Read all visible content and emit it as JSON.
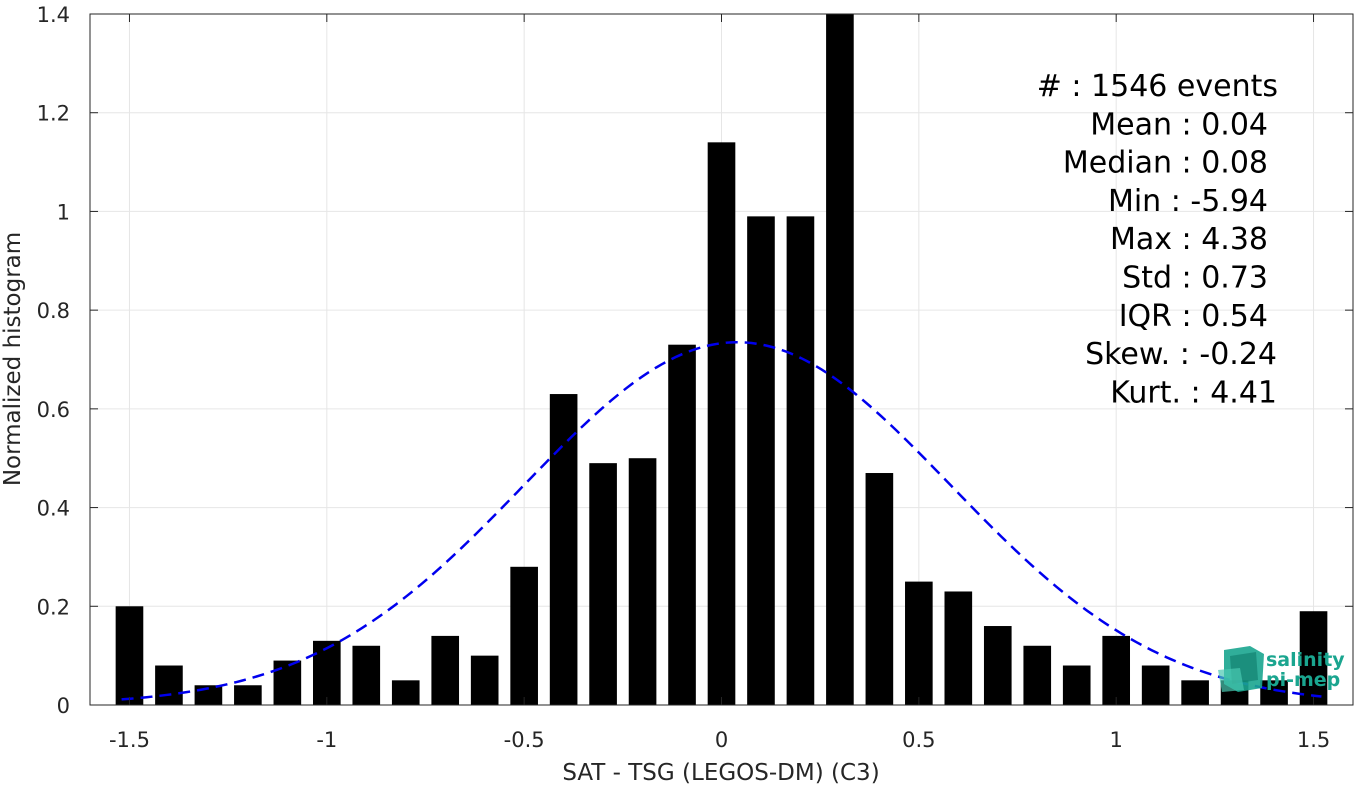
{
  "chart_data": {
    "type": "bar",
    "xlabel": "SAT - TSG (LEGOS-DM) (C3)",
    "ylabel": "Normalized histogram",
    "xlim": [
      -1.6,
      1.6
    ],
    "ylim": [
      0,
      1.4
    ],
    "x_ticks": [
      "-1.5",
      "-1",
      "-0.5",
      "0",
      "0.5",
      "1",
      "1.5"
    ],
    "x_tick_values": [
      -1.5,
      -1,
      -0.5,
      0,
      0.5,
      1,
      1.5
    ],
    "y_ticks": [
      "0",
      "0.2",
      "0.4",
      "0.6",
      "0.8",
      "1",
      "1.2",
      "1.4"
    ],
    "y_tick_values": [
      0,
      0.2,
      0.4,
      0.6,
      0.8,
      1.0,
      1.2,
      1.4
    ],
    "grid": true,
    "bin_width": 0.1,
    "bar_color": "#000000",
    "x": [
      -1.5,
      -1.4,
      -1.3,
      -1.2,
      -1.1,
      -1.0,
      -0.9,
      -0.8,
      -0.7,
      -0.6,
      -0.5,
      -0.4,
      -0.3,
      -0.2,
      -0.1,
      0.0,
      0.1,
      0.2,
      0.3,
      0.4,
      0.5,
      0.6,
      0.7,
      0.8,
      0.9,
      1.0,
      1.1,
      1.2,
      1.3,
      1.4,
      1.5
    ],
    "values": [
      0.2,
      0.08,
      0.04,
      0.04,
      0.09,
      0.13,
      0.12,
      0.05,
      0.14,
      0.1,
      0.28,
      0.63,
      0.49,
      0.5,
      0.73,
      1.14,
      0.99,
      0.99,
      1.4,
      0.47,
      0.25,
      0.23,
      0.16,
      0.12,
      0.08,
      0.14,
      0.08,
      0.05,
      0.05,
      0.05,
      0.19
    ],
    "fit": {
      "type": "gaussian",
      "mean": 0.04,
      "std": 0.54,
      "peak": 0.735,
      "color": "#0000ee",
      "style": "dashed"
    },
    "stats": [
      {
        "label": "#  ",
        "value": "1546 events"
      },
      {
        "label": "Mean",
        "value": "0.04"
      },
      {
        "label": "Median",
        "value": "0.08"
      },
      {
        "label": "Min",
        "value": "-5.94"
      },
      {
        "label": "Max",
        "value": "4.38"
      },
      {
        "label": "Std",
        "value": "0.73"
      },
      {
        "label": "IQR",
        "value": "0.54"
      },
      {
        "label": "Skew.",
        "value": "-0.24"
      },
      {
        "label": "Kurt.",
        "value": "4.41"
      }
    ],
    "stats_text": [
      "#  : 1546 events",
      "Mean : 0.04",
      "Median : 0.08",
      "Min : -5.94",
      "Max : 4.38",
      "Std : 0.73",
      "IQR : 0.54",
      "Skew. : -0.24",
      "Kurt. : 4.41"
    ]
  },
  "logo": {
    "line1": "salinity",
    "line2": "pi-mep",
    "color": "#1aa58f"
  }
}
